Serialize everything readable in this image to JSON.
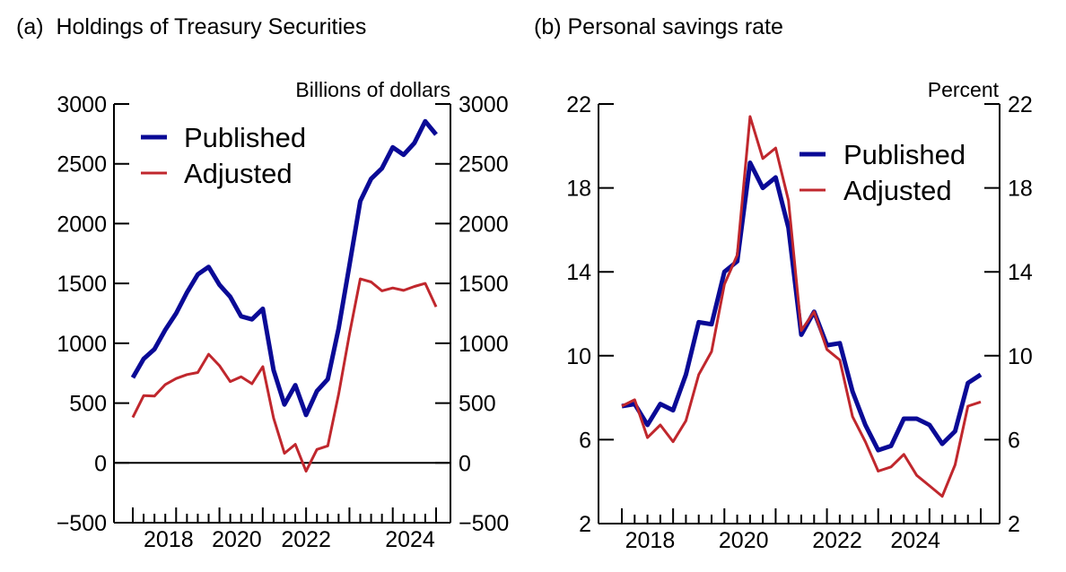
{
  "colors": {
    "published": "#0a0a96",
    "adjusted": "#c0272d",
    "axis": "#000000"
  },
  "chart_data": [
    {
      "type": "line",
      "title": "(a)  Holdings of Treasury Securities",
      "unit_label": "Billions of dollars",
      "ylim": [
        -500,
        3000
      ],
      "yticks": [
        -500,
        0,
        500,
        1000,
        1500,
        2000,
        2500,
        3000
      ],
      "ytick_labels": [
        "−500",
        "0",
        "500",
        "1000",
        "1500",
        "2000",
        "2500",
        "3000"
      ],
      "x_start": "2017Q4",
      "x_end": "2024Q4",
      "frequency": "quarterly",
      "xtick_labels": [
        "2018",
        "2020",
        "2022",
        "2024"
      ],
      "zero_line": true,
      "legend_position": "top-left",
      "series": [
        {
          "name": "Published",
          "values": [
            712,
            870,
            950,
            1112,
            1250,
            1425,
            1575,
            1638,
            1488,
            1388,
            1225,
            1200,
            1288,
            775,
            488,
            650,
            400,
            600,
            700,
            1125,
            1650,
            2188,
            2375,
            2462,
            2638,
            2575,
            2675,
            2855,
            2745
          ]
        },
        {
          "name": "Adjusted",
          "values": [
            380,
            562,
            558,
            655,
            705,
            738,
            755,
            908,
            812,
            680,
            720,
            662,
            805,
            375,
            80,
            155,
            -70,
            112,
            142,
            575,
            1075,
            1538,
            1512,
            1438,
            1462,
            1442,
            1475,
            1500,
            1305
          ]
        }
      ]
    },
    {
      "type": "line",
      "title": "(b) Personal savings rate",
      "unit_label": "Percent",
      "ylim": [
        2,
        22
      ],
      "yticks": [
        2,
        6,
        10,
        14,
        18,
        22
      ],
      "ytick_labels": [
        "2",
        "6",
        "10",
        "14",
        "18",
        "22"
      ],
      "x_start": "2017Q4",
      "x_end": "2024Q4",
      "frequency": "quarterly",
      "xtick_labels": [
        "2018",
        "2020",
        "2022",
        "2024"
      ],
      "zero_line": false,
      "legend_position": "top-right",
      "series": [
        {
          "name": "Published",
          "values": [
            7.6,
            7.7,
            6.7,
            7.7,
            7.4,
            9.1,
            11.6,
            11.5,
            14.0,
            14.5,
            19.2,
            18.0,
            18.5,
            16.1,
            11.0,
            12.1,
            10.5,
            10.6,
            8.3,
            6.7,
            5.5,
            5.7,
            7.0,
            7.0,
            6.7,
            5.8,
            6.4,
            8.7,
            9.1
          ]
        },
        {
          "name": "Adjusted",
          "values": [
            7.6,
            7.9,
            6.1,
            6.7,
            5.9,
            6.9,
            9.1,
            10.2,
            13.4,
            14.8,
            21.4,
            19.4,
            19.9,
            17.4,
            11.2,
            12.1,
            10.3,
            9.8,
            7.1,
            5.9,
            4.5,
            4.7,
            5.3,
            4.3,
            3.8,
            3.3,
            4.8,
            7.6,
            7.8
          ]
        }
      ]
    }
  ]
}
